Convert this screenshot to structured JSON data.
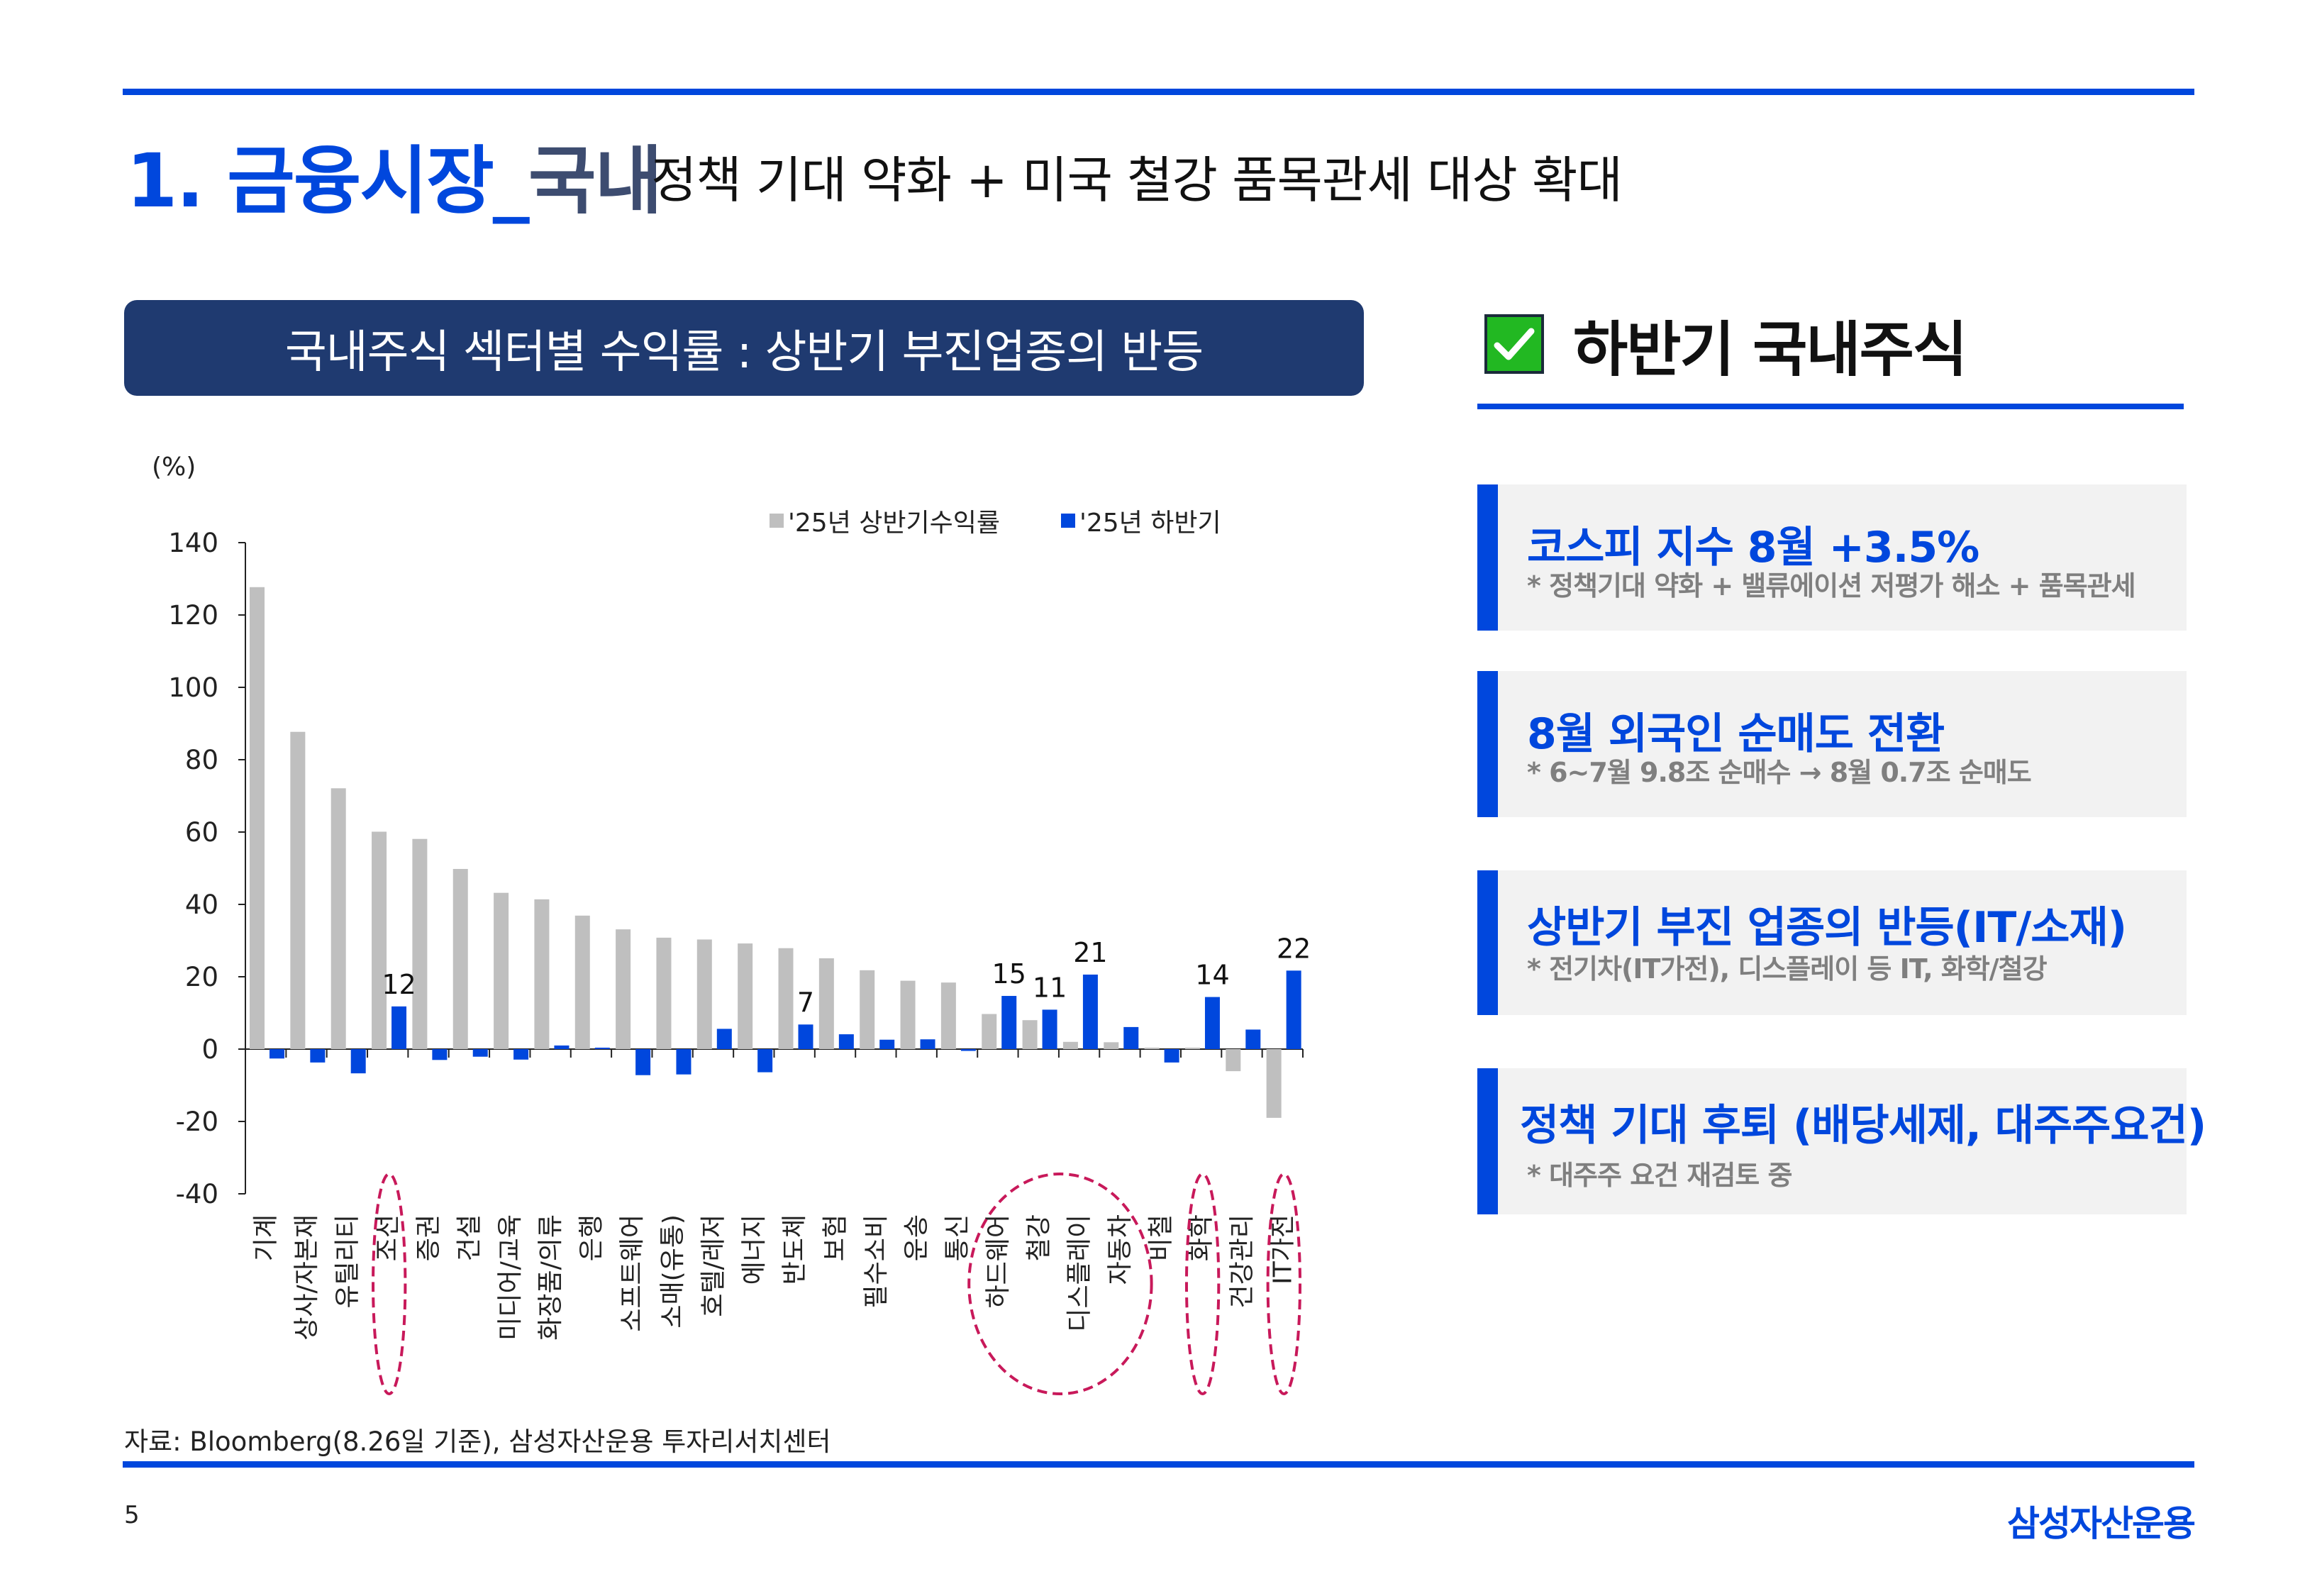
{
  "header": {
    "title_main": "1. 금융시장_",
    "title_main_suffix": "국내",
    "title_sub": "정책 기대 약화 + 미국 철강 품목관세 대상 확대"
  },
  "chart_panel": {
    "header": "국내주식 섹터별 수익률 : 상반기 부진업종의 반등",
    "source": "자료: Bloomberg(8.26일 기준), 삼성자산운용 투자리서치센터"
  },
  "chart_data": {
    "type": "bar",
    "title": "국내주식 섹터별 수익률 : 상반기 부진업종의 반등",
    "ylabel": "(%)",
    "xlabel": "",
    "ylim": [
      -40,
      140
    ],
    "yticks": [
      140,
      120,
      100,
      80,
      60,
      40,
      20,
      0,
      -20,
      -40
    ],
    "grid": false,
    "legend_position": "top-right",
    "categories": [
      "기계",
      "상사/자본재",
      "유틸리티",
      "조선",
      "증권",
      "건설",
      "미디어/교육",
      "화장품/의류",
      "은행",
      "소프트웨어",
      "소매(유통)",
      "호텔/레저",
      "에너지",
      "반도체",
      "보험",
      "필수소비",
      "운송",
      "통신",
      "하드웨어",
      "철강",
      "디스플레이",
      "자동차",
      "비철",
      "화학",
      "건강관리",
      "IT가전"
    ],
    "series": [
      {
        "name": "'25년 상반기수익률",
        "color": "#bfbfbf",
        "values": [
          127.7,
          87.7,
          72.1,
          60.1,
          58.1,
          49.8,
          43.2,
          41.4,
          36.9,
          33.1,
          30.8,
          30.3,
          29.2,
          27.9,
          25.1,
          21.8,
          18.9,
          18.4,
          9.7,
          8.0,
          2.0,
          1.9,
          0.4,
          0.4,
          -6.1,
          -19.0
        ]
      },
      {
        "name": "'25년 하반기",
        "color": "#0047dd",
        "values": [
          -2.6,
          -3.7,
          -6.7,
          11.8,
          -3.0,
          -2.1,
          -2.9,
          1.0,
          0.4,
          -7.2,
          -7.0,
          5.6,
          -6.4,
          6.8,
          4.1,
          2.6,
          2.7,
          -0.5,
          14.7,
          10.9,
          20.6,
          6.1,
          -3.7,
          14.4,
          5.4,
          21.7
        ],
        "data_labels": [
          null,
          null,
          null,
          "12",
          null,
          null,
          null,
          null,
          null,
          null,
          null,
          null,
          null,
          "7",
          null,
          null,
          null,
          null,
          "15",
          "11",
          "21",
          null,
          null,
          "14",
          null,
          "22"
        ]
      }
    ],
    "highlighted_categories": [
      [
        "조선"
      ],
      [
        "하드웨어",
        "철강",
        "디스플레이",
        "자동차"
      ],
      [
        "화학"
      ],
      [
        "IT가전"
      ]
    ],
    "highlight_color": "#c8195a"
  },
  "right_panel": {
    "title": "하반기 국내주식",
    "cards": [
      {
        "title": "코스피 지수 8월 +3.5%",
        "sub": "* 정책기대 약화 + 밸류에이션 저평가 해소 + 품목관세"
      },
      {
        "title": "8월 외국인 순매도 전환",
        "sub": "* 6~7월 9.8조 순매수 → 8월 0.7조 순매도"
      },
      {
        "title": "상반기 부진 업종의 반등(IT/소재)",
        "sub": "* 전기차(IT가전), 디스플레이 등 IT, 화학/철강"
      },
      {
        "title": "정책 기대 후퇴 (배당세제, 대주주요건)",
        "sub": "* 대주주 요건 재검토 중"
      }
    ]
  },
  "footer": {
    "page": "5",
    "logo": "삼성자산운용"
  },
  "colors": {
    "accent": "#0047dd",
    "navy": "#1f3a70",
    "gray_bar": "#bfbfbf",
    "card_bg": "#f2f2f2",
    "check_green": "#22b822"
  }
}
